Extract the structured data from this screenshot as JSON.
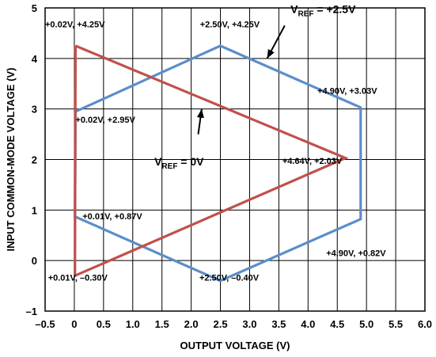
{
  "chart_data": {
    "type": "line",
    "xlabel": "OUTPUT VOLTAGE (V)",
    "ylabel": "INPUT COMMON-MODE VOLTAGE (V)",
    "xlim": [
      -0.5,
      6.0
    ],
    "ylim": [
      -1,
      5
    ],
    "xticks": [
      "–0.5",
      "0",
      "0.5",
      "1.0",
      "1.5",
      "2.0",
      "2.5",
      "3.0",
      "3.5",
      "4.0",
      "4.5",
      "5.0",
      "5.5",
      "6.0"
    ],
    "yticks": [
      "–1",
      "0",
      "1",
      "2",
      "3",
      "4",
      "5"
    ],
    "grid": true,
    "series": [
      {
        "color": "#5b8ec9",
        "points": [
          [
            0.02,
            2.95
          ],
          [
            2.5,
            4.25
          ],
          [
            4.9,
            3.03
          ],
          [
            4.9,
            0.82
          ],
          [
            2.5,
            -0.4
          ],
          [
            0.01,
            0.87
          ],
          [
            0.02,
            2.95
          ]
        ]
      },
      {
        "color": "#c0504d",
        "points": [
          [
            0.02,
            4.25
          ],
          [
            4.64,
            2.03
          ],
          [
            0.01,
            -0.3
          ],
          [
            0.02,
            4.25
          ]
        ]
      }
    ],
    "legend_labels": [
      {
        "main": "V",
        "sub": "REF",
        "rest": " = +2.5V",
        "x": 3.7,
        "y": 4.9
      },
      {
        "main": "V",
        "sub": "REF",
        "rest": " = 0V",
        "x": 1.37,
        "y": 1.88
      }
    ],
    "annotations": [
      {
        "text": "+0.02V, +4.25V",
        "x": -0.5,
        "y": 4.62
      },
      {
        "text": "+2.50V, +4.25V",
        "x": 2.15,
        "y": 4.62
      },
      {
        "text": "+0.02V, +2.95V",
        "x": 0.02,
        "y": 2.73
      },
      {
        "text": "+4.90V, +3.03V",
        "x": 4.16,
        "y": 3.3
      },
      {
        "text": "+4.64V, +2.03V",
        "x": 3.56,
        "y": 1.91
      },
      {
        "text": "+0.01V, +0.87V",
        "x": 0.14,
        "y": 0.82
      },
      {
        "text": "+4.90V, +0.82V",
        "x": 4.31,
        "y": 0.09
      },
      {
        "text": "+0.01V, –0.30V",
        "x": -0.45,
        "y": -0.4
      },
      {
        "text": "+2.50V, –0.40V",
        "x": 2.14,
        "y": -0.4
      }
    ],
    "arrows": [
      {
        "from": [
          3.6,
          4.65
        ],
        "to": [
          3.3,
          4.0
        ]
      },
      {
        "from": [
          2.12,
          2.5
        ],
        "to": [
          2.18,
          3.0
        ]
      }
    ]
  }
}
